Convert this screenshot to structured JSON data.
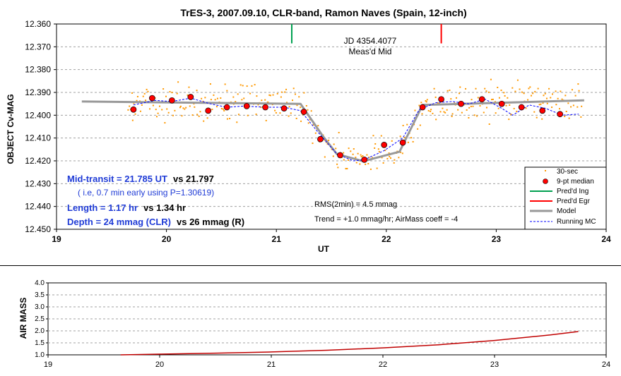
{
  "chart_data": [
    {
      "type": "scatter",
      "title": "TrES-3, 2007.09.10, CLR-band, Ramon Naves (Spain, 12-inch)",
      "xlabel": "UT",
      "ylabel": "OBJECT Cv-MAG",
      "xlim": [
        19,
        24
      ],
      "ylim": [
        12.36,
        12.45
      ],
      "y_inverted": true,
      "grid": true,
      "x_ticks": [
        "19",
        "20",
        "21",
        "22",
        "23",
        "24"
      ],
      "y_ticks": [
        "12.360",
        "12.370",
        "12.380",
        "12.390",
        "12.400",
        "12.410",
        "12.420",
        "12.430",
        "12.440",
        "12.450"
      ],
      "legend": {
        "placement": "bottom-right",
        "entries": [
          "30-sec",
          "9-pt median",
          "Pred'd Ing",
          "Pred'd Egr",
          "Model",
          "Running MC"
        ]
      },
      "colors": {
        "raw": "#FF9900",
        "median": "#FF0000",
        "ingress": "#00A050",
        "egress": "#FF0000",
        "model": "#999999",
        "running": "#0000FF"
      },
      "series": [
        {
          "name": "9-pt median",
          "points": [
            [
              19.7,
              12.3975
            ],
            [
              19.87,
              12.3925
            ],
            [
              20.05,
              12.3935
            ],
            [
              20.22,
              12.392
            ],
            [
              20.38,
              12.398
            ],
            [
              20.55,
              12.3965
            ],
            [
              20.73,
              12.396
            ],
            [
              20.9,
              12.3965
            ],
            [
              21.07,
              12.397
            ],
            [
              21.25,
              12.3985
            ],
            [
              21.4,
              12.4105
            ],
            [
              21.58,
              12.4175
            ],
            [
              21.8,
              12.4195
            ],
            [
              21.98,
              12.413
            ],
            [
              22.15,
              12.412
            ],
            [
              22.33,
              12.3965
            ],
            [
              22.5,
              12.393
            ],
            [
              22.68,
              12.395
            ],
            [
              22.87,
              12.393
            ],
            [
              23.05,
              12.395
            ],
            [
              23.23,
              12.3965
            ],
            [
              23.42,
              12.398
            ],
            [
              23.58,
              12.3995
            ]
          ]
        },
        {
          "name": "Model",
          "points": [
            [
              19.23,
              12.394
            ],
            [
              21.22,
              12.395
            ],
            [
              21.42,
              12.409
            ],
            [
              21.55,
              12.417
            ],
            [
              21.79,
              12.4202
            ],
            [
              22.0,
              12.4175
            ],
            [
              22.12,
              12.416
            ],
            [
              22.33,
              12.3955
            ],
            [
              23.8,
              12.3935
            ]
          ]
        },
        {
          "name": "Running MC",
          "points": [
            [
              19.7,
              12.3955
            ],
            [
              19.9,
              12.3935
            ],
            [
              20.05,
              12.394
            ],
            [
              20.22,
              12.3925
            ],
            [
              20.4,
              12.395
            ],
            [
              20.55,
              12.3965
            ],
            [
              20.7,
              12.396
            ],
            [
              20.9,
              12.3965
            ],
            [
              21.07,
              12.3965
            ],
            [
              21.22,
              12.398
            ],
            [
              21.38,
              12.4075
            ],
            [
              21.55,
              12.417
            ],
            [
              21.7,
              12.42
            ],
            [
              21.8,
              12.4195
            ],
            [
              21.98,
              12.4155
            ],
            [
              22.15,
              12.41
            ],
            [
              22.3,
              12.3975
            ],
            [
              22.45,
              12.3945
            ],
            [
              22.6,
              12.394
            ],
            [
              22.75,
              12.395
            ],
            [
              22.9,
              12.393
            ],
            [
              23.05,
              12.397
            ],
            [
              23.15,
              12.4
            ],
            [
              23.3,
              12.3955
            ],
            [
              23.45,
              12.397
            ],
            [
              23.6,
              12.4
            ],
            [
              23.75,
              12.3995
            ]
          ]
        }
      ],
      "raw_30sec": {
        "name": "30-sec",
        "x_range": [
          19.65,
          23.78
        ],
        "count": 360,
        "scatter_mag": 0.012
      },
      "predicted_ingress": 21.14,
      "predicted_egress": 22.5,
      "annotations": {
        "jd": "JD 4354.4077",
        "mid": "Meas'd Mid",
        "transit_a": "Mid-transit = 21.785 UT",
        "transit_b": "vs 21.797",
        "early_note": "( i.e, 0.7 min early using P=1.30619)",
        "length_a": "Length = 1.17 hr",
        "length_b": "vs 1.34 hr",
        "depth_a": "Depth = 24 mmag (CLR)",
        "depth_b": "vs 26 mmag (R)",
        "rms": "RMS(2min) = 4.5 mmag",
        "trend": "Trend = +1.0 mmag/hr; AirMass coeff = -4"
      }
    },
    {
      "type": "line",
      "title": "",
      "xlabel": "",
      "ylabel": "AIR MASS",
      "xlim": [
        19,
        24
      ],
      "ylim": [
        1.0,
        4.0
      ],
      "grid": true,
      "x_ticks": [
        "19",
        "20",
        "21",
        "22",
        "23",
        "24"
      ],
      "y_ticks": [
        "1.0",
        "1.5",
        "2.0",
        "2.5",
        "3.0",
        "3.5",
        "4.0"
      ],
      "series": [
        {
          "name": "",
          "color": "#C00000",
          "points": [
            [
              19.65,
              1.0
            ],
            [
              20.0,
              1.03
            ],
            [
              20.5,
              1.07
            ],
            [
              21.0,
              1.12
            ],
            [
              21.5,
              1.19
            ],
            [
              22.0,
              1.29
            ],
            [
              22.5,
              1.42
            ],
            [
              23.0,
              1.6
            ],
            [
              23.5,
              1.83
            ],
            [
              23.75,
              1.97
            ]
          ]
        }
      ]
    }
  ]
}
